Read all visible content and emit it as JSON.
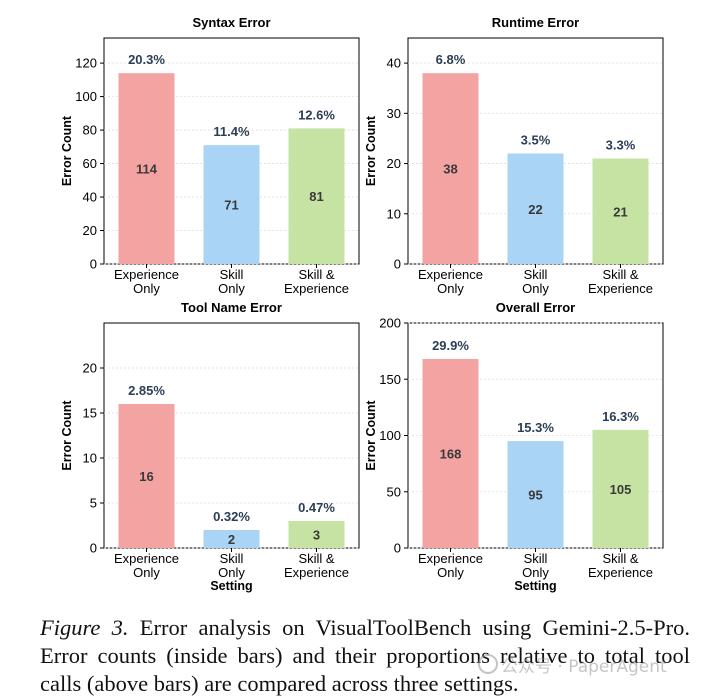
{
  "chart_data": [
    {
      "type": "bar",
      "title": "Syntax Error",
      "ylabel": "Error Count",
      "xlabel": "",
      "ylim": [
        0,
        135
      ],
      "yticks": [
        0,
        20,
        40,
        60,
        80,
        100,
        120
      ],
      "categories": [
        [
          "Experience",
          "Only"
        ],
        [
          "Skill",
          "Only"
        ],
        [
          "Skill &",
          "Experience"
        ]
      ],
      "values": [
        114,
        71,
        81
      ],
      "percent_labels": [
        "20.3%",
        "11.4%",
        "12.6%"
      ],
      "colors": [
        "#f4a3a3",
        "#a9d4f5",
        "#c6e3a3"
      ]
    },
    {
      "type": "bar",
      "title": "Runtime Error",
      "ylabel": "Error Count",
      "xlabel": "",
      "ylim": [
        0,
        45
      ],
      "yticks": [
        0,
        10,
        20,
        30,
        40
      ],
      "categories": [
        [
          "Experience",
          "Only"
        ],
        [
          "Skill",
          "Only"
        ],
        [
          "Skill &",
          "Experience"
        ]
      ],
      "values": [
        38,
        22,
        21
      ],
      "percent_labels": [
        "6.8%",
        "3.5%",
        "3.3%"
      ],
      "colors": [
        "#f4a3a3",
        "#a9d4f5",
        "#c6e3a3"
      ]
    },
    {
      "type": "bar",
      "title": "Tool Name Error",
      "ylabel": "Error Count",
      "xlabel": "Setting",
      "ylim": [
        0,
        25
      ],
      "yticks": [
        0,
        5,
        10,
        15,
        20
      ],
      "categories": [
        [
          "Experience",
          "Only"
        ],
        [
          "Skill",
          "Only"
        ],
        [
          "Skill &",
          "Experience"
        ]
      ],
      "values": [
        16,
        2,
        3
      ],
      "percent_labels": [
        "2.85%",
        "0.32%",
        "0.47%"
      ],
      "colors": [
        "#f4a3a3",
        "#a9d4f5",
        "#c6e3a3"
      ]
    },
    {
      "type": "bar",
      "title": "Overall Error",
      "ylabel": "Error Count",
      "xlabel": "Setting",
      "ylim": [
        0,
        200
      ],
      "yticks": [
        0,
        50,
        100,
        150,
        200
      ],
      "categories": [
        [
          "Experience",
          "Only"
        ],
        [
          "Skill",
          "Only"
        ],
        [
          "Skill &",
          "Experience"
        ]
      ],
      "values": [
        168,
        95,
        105
      ],
      "percent_labels": [
        "29.9%",
        "15.3%",
        "16.3%"
      ],
      "colors": [
        "#f4a3a3",
        "#a9d4f5",
        "#c6e3a3"
      ]
    }
  ],
  "caption": {
    "label": "Figure 3.",
    "text": " Error analysis on VisualToolBench using Gemini-2.5-Pro. Error counts (inside bars) and their proportions relative to total tool calls (above bars) are compared across three settings."
  },
  "watermark": "公众号 · PaperAgent"
}
